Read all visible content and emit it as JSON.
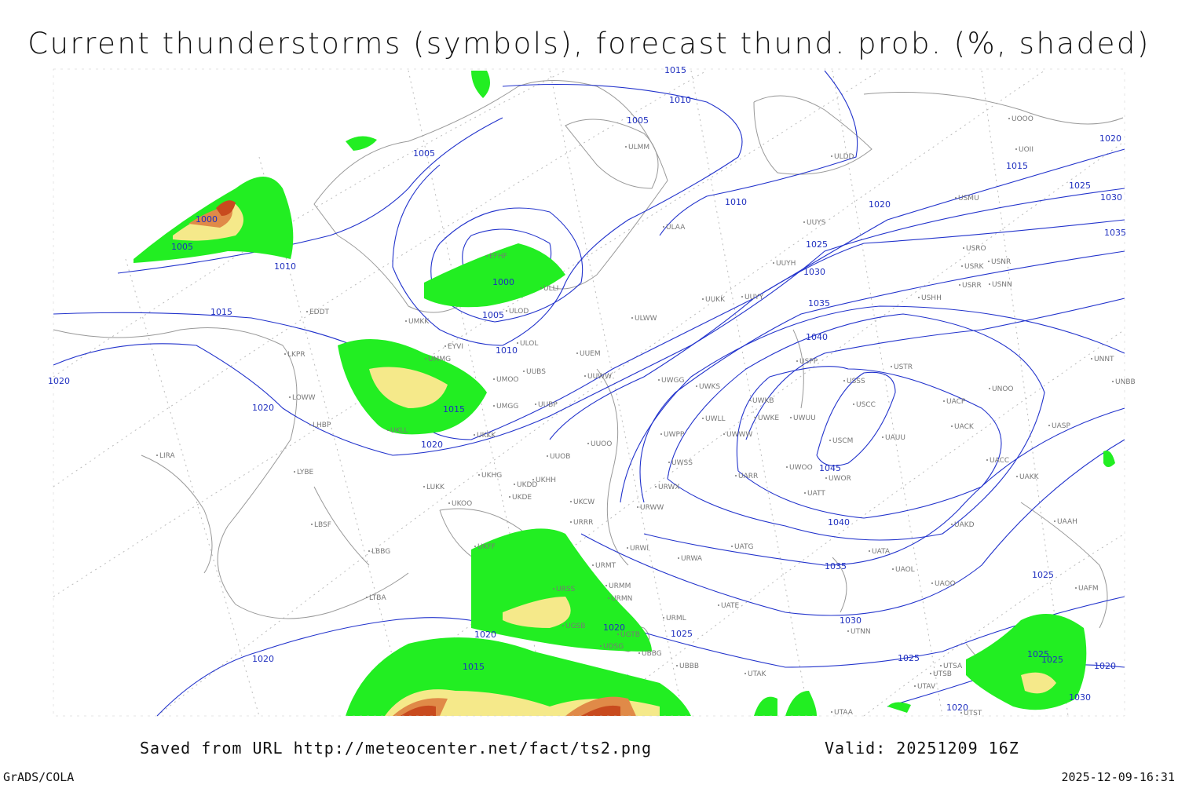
{
  "header": {
    "title": "Current thunderstorms (symbols), forecast thund. prob. (%, shaded)"
  },
  "footer": {
    "source": "Saved from URL http://meteocenter.net/fact/ts2.png",
    "valid": "Valid: 20251209 16Z",
    "software": "GrADS/COLA",
    "timestamp": "2025-12-09-16:31"
  },
  "isobar_labels": [
    1015,
    1010,
    1005,
    1005,
    1020,
    1015,
    1025,
    1020,
    1010,
    1030,
    1035,
    1000,
    1005,
    1010,
    1025,
    1030,
    1000,
    1005,
    1035,
    1015,
    1040,
    1010,
    1020,
    1020,
    1015,
    1020,
    1045,
    1040,
    1035,
    1025,
    1030,
    1020,
    1020,
    1025,
    1025,
    1025,
    1025,
    1020,
    1015,
    1020,
    1030,
    1020
  ],
  "stations": [
    "ULMM",
    "ULDD",
    "ULAA",
    "UUYS",
    "UUYH",
    "UUKK",
    "UUYY",
    "ULWW",
    "UUEM",
    "UUWW",
    "UWGG",
    "UWKS",
    "UWKB",
    "UWKE",
    "UWUU",
    "UWLL",
    "UWWW",
    "UWPP",
    "UWSS",
    "UARR",
    "UWOO",
    "UWOR",
    "UATT",
    "UUOO",
    "UUOB",
    "UKHH",
    "USSS",
    "USCC",
    "USCM",
    "UAUU",
    "USTR",
    "USPP",
    "USHH",
    "USRR",
    "USNN",
    "USRK",
    "USNR",
    "USRO",
    "USMU",
    "UOOO",
    "UOII",
    "UNNT",
    "UNBB",
    "UNOO",
    "UACP",
    "UACK",
    "UASP",
    "UACC",
    "UAKK",
    "UAAH",
    "UAKD",
    "UATG",
    "UATA",
    "UAOL",
    "UAOO",
    "UAFM",
    "URWA",
    "URWI",
    "URWW",
    "URWX",
    "UKCW",
    "URRR",
    "UKFF",
    "URMT",
    "URMM",
    "URMN",
    "URML",
    "UATE",
    "UTNN",
    "UBBB",
    "UBBG",
    "UGTB",
    "UTAK",
    "UTAA",
    "UTSA",
    "UTSB",
    "UTAV",
    "UTST",
    "EFHF",
    "ULLI",
    "ULOD",
    "ULOL",
    "EYVI",
    "UMMG",
    "UMKK",
    "EDDT",
    "LKPR",
    "LOWW",
    "LHBP",
    "LIRA",
    "LYBE",
    "LBSF",
    "LBBG",
    "LTBA",
    "UKLL",
    "UKKK",
    "UMGG",
    "UMOO",
    "UUBP",
    "UUBS",
    "UKOO",
    "UKDD",
    "UKDE",
    "UKHG",
    "LUKK",
    "URSS",
    "UGSB",
    "UDSG"
  ]
}
